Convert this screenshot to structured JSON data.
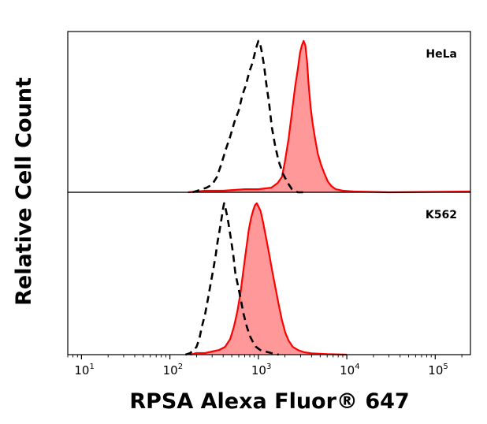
{
  "chart_data": {
    "type": "area",
    "xlabel": "RPSA Alexa Fluor® 647",
    "ylabel": "Relative Cell Count",
    "xscale": "log",
    "xlim": [
      7,
      250000
    ],
    "x_ticks": [
      {
        "value": 10,
        "base": "10",
        "exp": "1"
      },
      {
        "value": 100,
        "base": "10",
        "exp": "2"
      },
      {
        "value": 1000,
        "base": "10",
        "exp": "3"
      },
      {
        "value": 10000,
        "base": "10",
        "exp": "4"
      },
      {
        "value": 100000,
        "base": "10",
        "exp": "5"
      }
    ],
    "grid": false,
    "panels": [
      {
        "label": "HeLa",
        "ylim": [
          0,
          1
        ],
        "control": {
          "style": "dashed",
          "color": "#000000",
          "points": [
            [
              180,
              0
            ],
            [
              205,
              0.01
            ],
            [
              230,
              0.02
            ],
            [
              260,
              0.03
            ],
            [
              300,
              0.05
            ],
            [
              340,
              0.1
            ],
            [
              380,
              0.18
            ],
            [
              430,
              0.28
            ],
            [
              480,
              0.36
            ],
            [
              540,
              0.46
            ],
            [
              600,
              0.53
            ],
            [
              660,
              0.63
            ],
            [
              720,
              0.69
            ],
            [
              790,
              0.78
            ],
            [
              860,
              0.84
            ],
            [
              940,
              0.93
            ],
            [
              1000,
              0.98
            ],
            [
              1050,
              0.96
            ],
            [
              1100,
              0.9
            ],
            [
              1160,
              0.82
            ],
            [
              1230,
              0.7
            ],
            [
              1320,
              0.58
            ],
            [
              1420,
              0.42
            ],
            [
              1550,
              0.3
            ],
            [
              1700,
              0.2
            ],
            [
              1900,
              0.12
            ],
            [
              2150,
              0.06
            ],
            [
              2400,
              0.02
            ],
            [
              2800,
              0
            ],
            [
              3200,
              0
            ]
          ]
        },
        "stained": {
          "style": "filled",
          "color": "#ff0000",
          "fill": "#ff9999",
          "points": [
            [
              160,
              0
            ],
            [
              250,
              0.01
            ],
            [
              400,
              0.01
            ],
            [
              700,
              0.02
            ],
            [
              1000,
              0.02
            ],
            [
              1400,
              0.03
            ],
            [
              1650,
              0.06
            ],
            [
              1850,
              0.1
            ],
            [
              2000,
              0.2
            ],
            [
              2200,
              0.35
            ],
            [
              2400,
              0.52
            ],
            [
              2600,
              0.68
            ],
            [
              2800,
              0.8
            ],
            [
              2950,
              0.9
            ],
            [
              3100,
              0.95
            ],
            [
              3250,
              0.98
            ],
            [
              3400,
              0.95
            ],
            [
              3550,
              0.85
            ],
            [
              3700,
              0.7
            ],
            [
              3900,
              0.55
            ],
            [
              4100,
              0.45
            ],
            [
              4400,
              0.34
            ],
            [
              4700,
              0.25
            ],
            [
              5100,
              0.18
            ],
            [
              5600,
              0.12
            ],
            [
              6100,
              0.07
            ],
            [
              6700,
              0.04
            ],
            [
              7500,
              0.02
            ],
            [
              9000,
              0.01
            ],
            [
              12000,
              0.005
            ],
            [
              30000,
              0
            ],
            [
              250000,
              0.005
            ]
          ]
        }
      },
      {
        "label": "K562",
        "ylim": [
          0,
          1
        ],
        "control": {
          "style": "dashed",
          "color": "#000000",
          "points": [
            [
              150,
              0
            ],
            [
              170,
              0.01
            ],
            [
              185,
              0.03
            ],
            [
              200,
              0.05
            ],
            [
              215,
              0.1
            ],
            [
              230,
              0.18
            ],
            [
              250,
              0.26
            ],
            [
              270,
              0.36
            ],
            [
              290,
              0.46
            ],
            [
              310,
              0.55
            ],
            [
              330,
              0.64
            ],
            [
              345,
              0.72
            ],
            [
              360,
              0.78
            ],
            [
              375,
              0.84
            ],
            [
              390,
              0.9
            ],
            [
              400,
              0.94
            ],
            [
              410,
              0.97
            ],
            [
              420,
              0.95
            ],
            [
              440,
              0.9
            ],
            [
              460,
              0.84
            ],
            [
              490,
              0.74
            ],
            [
              520,
              0.64
            ],
            [
              550,
              0.52
            ],
            [
              590,
              0.44
            ],
            [
              630,
              0.36
            ],
            [
              680,
              0.26
            ],
            [
              740,
              0.18
            ],
            [
              800,
              0.12
            ],
            [
              870,
              0.08
            ],
            [
              940,
              0.05
            ],
            [
              1050,
              0.03
            ],
            [
              1200,
              0.02
            ],
            [
              1400,
              0.01
            ],
            [
              1700,
              0
            ]
          ]
        },
        "stained": {
          "style": "filled",
          "color": "#ff0000",
          "fill": "#ff9999",
          "points": [
            [
              170,
              0
            ],
            [
              200,
              0.01
            ],
            [
              250,
              0.01
            ],
            [
              300,
              0.02
            ],
            [
              360,
              0.03
            ],
            [
              420,
              0.05
            ],
            [
              480,
              0.1
            ],
            [
              530,
              0.18
            ],
            [
              580,
              0.28
            ],
            [
              630,
              0.4
            ],
            [
              680,
              0.55
            ],
            [
              730,
              0.68
            ],
            [
              780,
              0.8
            ],
            [
              830,
              0.88
            ],
            [
              880,
              0.93
            ],
            [
              920,
              0.96
            ],
            [
              960,
              0.97
            ],
            [
              1000,
              0.95
            ],
            [
              1060,
              0.92
            ],
            [
              1130,
              0.85
            ],
            [
              1220,
              0.75
            ],
            [
              1320,
              0.65
            ],
            [
              1430,
              0.54
            ],
            [
              1560,
              0.43
            ],
            [
              1700,
              0.32
            ],
            [
              1850,
              0.22
            ],
            [
              2020,
              0.14
            ],
            [
              2200,
              0.09
            ],
            [
              2450,
              0.05
            ],
            [
              2800,
              0.03
            ],
            [
              3300,
              0.015
            ],
            [
              4000,
              0.008
            ],
            [
              6000,
              0.003
            ],
            [
              10000,
              0
            ]
          ]
        }
      }
    ]
  }
}
